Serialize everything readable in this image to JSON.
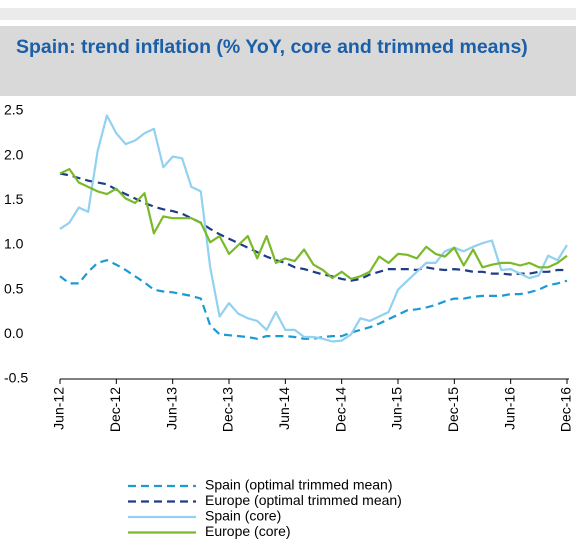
{
  "chart_data": {
    "type": "line",
    "title": "Spain: trend inflation (% YoY, core and trimmed means)",
    "categories": [
      "Jun-12",
      null,
      null,
      null,
      null,
      null,
      "Dec-12",
      null,
      null,
      null,
      null,
      null,
      "Jun-13",
      null,
      null,
      null,
      null,
      null,
      "Dec-13",
      null,
      null,
      null,
      null,
      null,
      "Jun-14",
      null,
      null,
      null,
      null,
      null,
      "Dec-14",
      null,
      null,
      null,
      null,
      null,
      "Jun-15",
      null,
      null,
      null,
      null,
      null,
      "Dec-15",
      null,
      null,
      null,
      null,
      null,
      "Jun-16",
      null,
      null,
      null,
      null,
      null,
      "Dec-16"
    ],
    "ylim": [
      -0.5,
      2.5
    ],
    "yticks": [
      -0.5,
      {
        "value": 0,
        "label": "0.0"
      },
      0.5,
      {
        "value": 1,
        "label": "1.0"
      },
      1.5,
      {
        "value": 2,
        "label": "2.0"
      },
      2.5
    ],
    "grid": false,
    "series": [
      {
        "name": "Spain (optimal trimmed mean)",
        "color": "#1c9ad6",
        "dashed": true,
        "values": [
          0.65,
          0.57,
          0.57,
          0.7,
          0.8,
          0.83,
          0.78,
          0.72,
          0.65,
          0.58,
          0.5,
          0.48,
          0.47,
          0.45,
          0.43,
          0.4,
          0.1,
          0.0,
          -0.01,
          -0.02,
          -0.03,
          -0.05,
          -0.02,
          -0.02,
          -0.02,
          -0.03,
          -0.05,
          -0.05,
          -0.03,
          -0.02,
          -0.02,
          0.02,
          0.05,
          0.08,
          0.12,
          0.17,
          0.22,
          0.27,
          0.28,
          0.3,
          0.33,
          0.37,
          0.4,
          0.4,
          0.42,
          0.43,
          0.43,
          0.43,
          0.45,
          0.45,
          0.47,
          0.5,
          0.55,
          0.57,
          0.6
        ]
      },
      {
        "name": "Europe (optimal trimmed mean)",
        "color": "#1f3c88",
        "dashed": true,
        "values": [
          1.8,
          1.78,
          1.75,
          1.72,
          1.7,
          1.68,
          1.62,
          1.57,
          1.52,
          1.47,
          1.43,
          1.4,
          1.38,
          1.35,
          1.3,
          1.25,
          1.18,
          1.12,
          1.07,
          1.02,
          0.97,
          0.92,
          0.87,
          0.83,
          0.8,
          0.75,
          0.73,
          0.7,
          0.67,
          0.65,
          0.62,
          0.6,
          0.62,
          0.67,
          0.7,
          0.73,
          0.73,
          0.73,
          0.72,
          0.75,
          0.73,
          0.72,
          0.73,
          0.72,
          0.7,
          0.7,
          0.68,
          0.68,
          0.67,
          0.68,
          0.68,
          0.7,
          0.7,
          0.72,
          0.72
        ]
      },
      {
        "name": "Spain (core)",
        "color": "#92d1f0",
        "dashed": false,
        "values": [
          1.18,
          1.25,
          1.42,
          1.37,
          2.05,
          2.45,
          2.25,
          2.13,
          2.17,
          2.25,
          2.3,
          1.87,
          1.99,
          1.97,
          1.65,
          1.6,
          0.75,
          0.2,
          0.35,
          0.23,
          0.18,
          0.15,
          0.05,
          0.25,
          0.05,
          0.05,
          -0.03,
          -0.03,
          -0.05,
          -0.08,
          -0.07,
          0.0,
          0.18,
          0.15,
          0.2,
          0.25,
          0.5,
          0.6,
          0.7,
          0.8,
          0.8,
          0.93,
          0.97,
          0.93,
          0.98,
          1.02,
          1.05,
          0.72,
          0.73,
          0.68,
          0.63,
          0.66,
          0.88,
          0.83,
          1.0
        ]
      },
      {
        "name": "Europe (core)",
        "color": "#7ab929",
        "dashed": false,
        "values": [
          1.8,
          1.85,
          1.7,
          1.65,
          1.6,
          1.57,
          1.63,
          1.52,
          1.47,
          1.58,
          1.13,
          1.32,
          1.3,
          1.3,
          1.3,
          1.25,
          1.03,
          1.1,
          0.9,
          1.0,
          1.1,
          0.85,
          1.1,
          0.8,
          0.85,
          0.82,
          0.95,
          0.78,
          0.72,
          0.63,
          0.7,
          0.62,
          0.65,
          0.7,
          0.87,
          0.8,
          0.9,
          0.89,
          0.85,
          0.98,
          0.9,
          0.87,
          0.97,
          0.77,
          0.95,
          0.75,
          0.78,
          0.8,
          0.8,
          0.77,
          0.8,
          0.75,
          0.75,
          0.8,
          0.88
        ]
      }
    ]
  }
}
